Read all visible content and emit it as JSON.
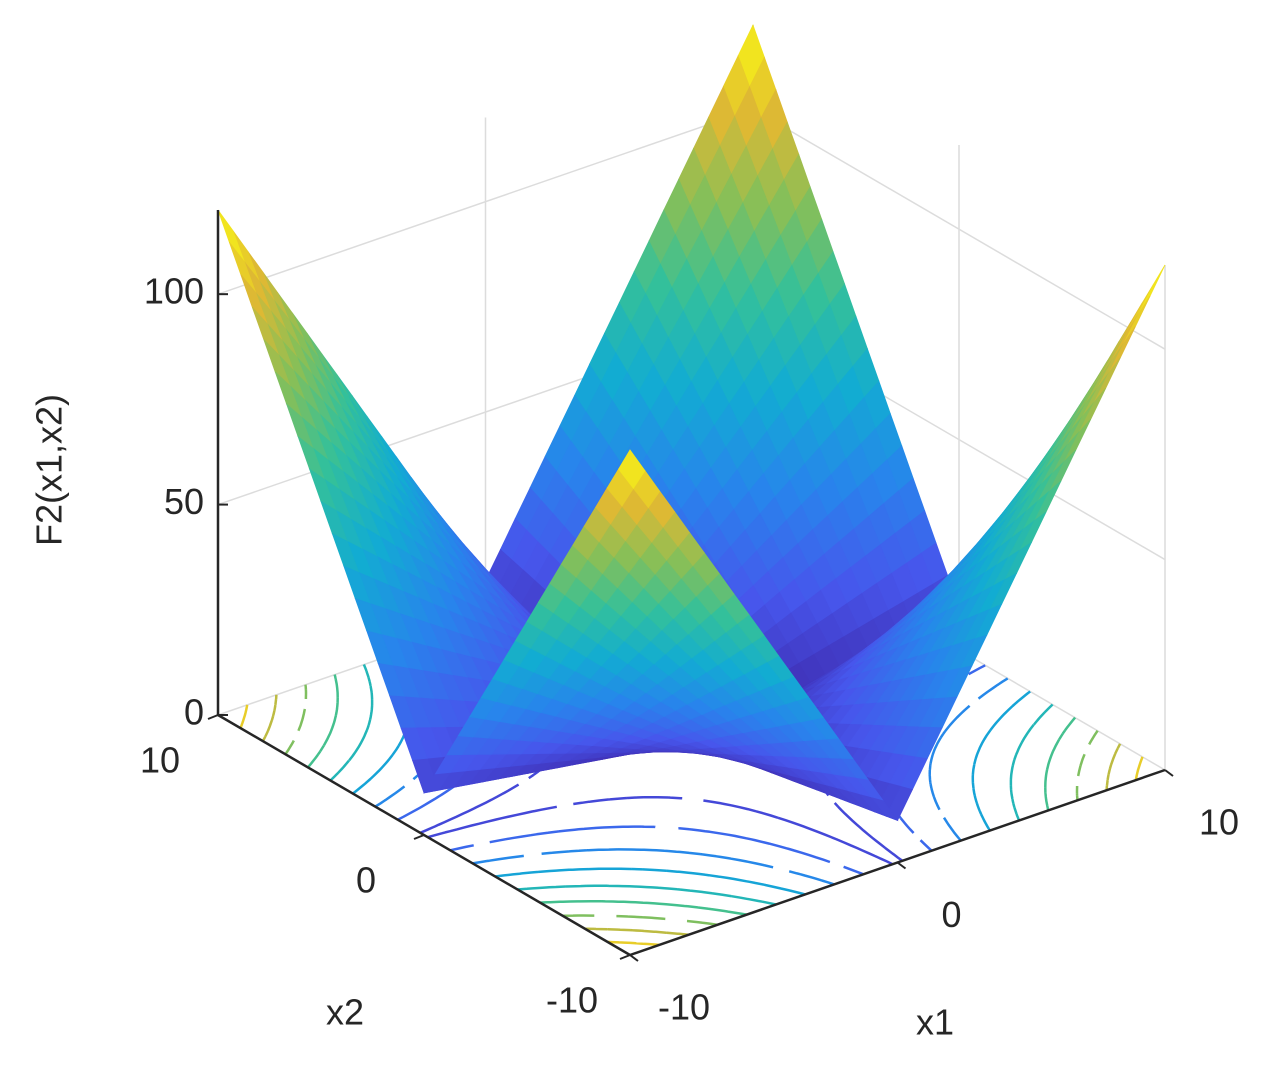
{
  "chart_data": {
    "type": "surface",
    "xlabel": "x1",
    "ylabel": "x2",
    "zlabel": "F2(x1,x2)",
    "x": [
      -10,
      0,
      10
    ],
    "y": [
      -10,
      0,
      10
    ],
    "z": [
      [
        120,
        10,
        120
      ],
      [
        10,
        0,
        10
      ],
      [
        120,
        10,
        120
      ]
    ],
    "xlim": [
      -10,
      10
    ],
    "ylim": [
      -10,
      10
    ],
    "zlim": [
      0,
      120
    ],
    "xticks": [
      -10,
      0,
      10
    ],
    "yticks": [
      -10,
      0,
      10
    ],
    "zticks": [
      0,
      50,
      100
    ],
    "grid": true,
    "colormap": [
      "#3e26a8",
      "#4756ec",
      "#2884ec",
      "#12acd2",
      "#33c09b",
      "#87bf58",
      "#e1b932",
      "#f9fb14"
    ],
    "contour_levels": [
      12,
      24,
      36,
      48,
      60,
      72,
      84,
      96,
      108
    ]
  }
}
